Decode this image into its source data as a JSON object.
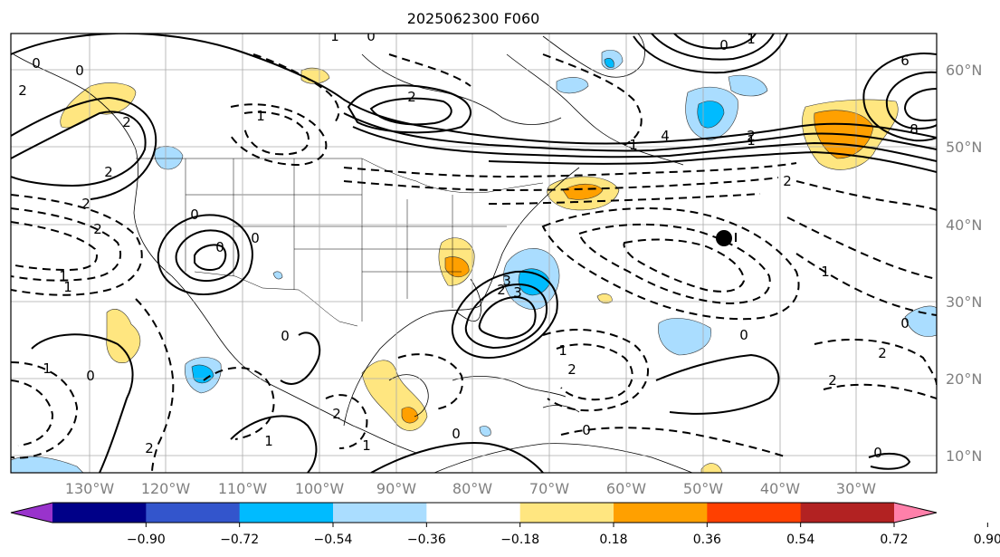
{
  "title": "2025062300 F060",
  "map": {
    "lon_labels": [
      "130°W",
      "120°W",
      "110°W",
      "100°W",
      "90°W",
      "80°W",
      "70°W",
      "60°W",
      "50°W",
      "40°W",
      "30°W"
    ],
    "lat_labels": [
      "60°N",
      "50°N",
      "40°N",
      "30°N",
      "20°N",
      "10°N"
    ],
    "contour_labels": [
      "2",
      "2",
      "2",
      "1",
      "0",
      "0",
      "0",
      "0",
      "1",
      "2",
      "4",
      "6",
      "8",
      "2",
      "1",
      "0",
      "0",
      "1",
      "2",
      "2",
      "2",
      "0",
      "1",
      "1",
      "0",
      "0",
      "0",
      "1",
      "1",
      "2",
      "2",
      "1",
      "2",
      "3",
      "3",
      "2",
      "1",
      "0",
      "0",
      "1",
      "2",
      "1",
      "2",
      "0",
      "0"
    ],
    "marker": "storm-center-dot"
  },
  "colorbar": {
    "ticks": [
      "−0.90",
      "−0.72",
      "−0.54",
      "−0.36",
      "−0.18",
      "0.18",
      "0.36",
      "0.54",
      "0.72",
      "0.90"
    ],
    "colors": [
      "#9933cc",
      "#000088",
      "#3355cc",
      "#00bbff",
      "#aaddff",
      "#ffffff",
      "#ffe680",
      "#ffa000",
      "#ff4000",
      "#b22222",
      "#ff80aa"
    ]
  }
}
